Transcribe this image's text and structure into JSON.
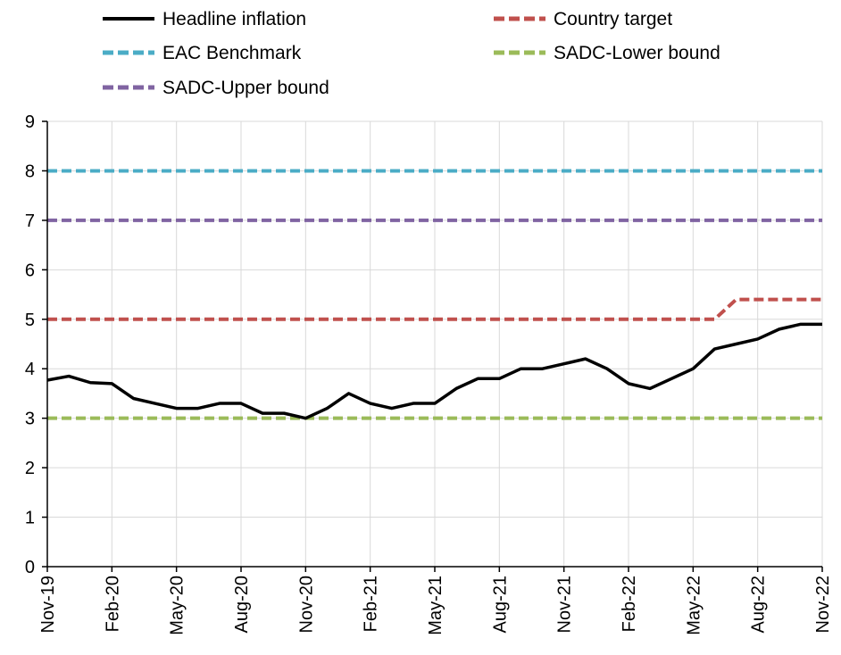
{
  "chart_data": {
    "type": "line",
    "ylim": [
      0,
      9
    ],
    "yticks": [
      0,
      1,
      2,
      3,
      4,
      5,
      6,
      7,
      8,
      9
    ],
    "xticks": [
      "Nov-19",
      "Feb-20",
      "May-20",
      "Aug-20",
      "Nov-20",
      "Feb-21",
      "May-21",
      "Aug-21",
      "Nov-21",
      "Feb-22",
      "May-22",
      "Aug-22",
      "Nov-22"
    ],
    "x": [
      "Nov-19",
      "Dec-19",
      "Jan-20",
      "Feb-20",
      "Mar-20",
      "Apr-20",
      "May-20",
      "Jun-20",
      "Jul-20",
      "Aug-20",
      "Sep-20",
      "Oct-20",
      "Nov-20",
      "Dec-20",
      "Jan-21",
      "Feb-21",
      "Mar-21",
      "Apr-21",
      "May-21",
      "Jun-21",
      "Jul-21",
      "Aug-21",
      "Sep-21",
      "Oct-21",
      "Nov-21",
      "Dec-21",
      "Jan-22",
      "Feb-22",
      "Mar-22",
      "Apr-22",
      "May-22",
      "Jun-22",
      "Jul-22",
      "Aug-22",
      "Sep-22",
      "Oct-22",
      "Nov-22"
    ],
    "grid": true,
    "legend_position": "top",
    "series": [
      {
        "name": "Headline inflation",
        "color": "#000000",
        "style": "solid",
        "values": [
          3.77,
          3.85,
          3.72,
          3.7,
          3.4,
          3.3,
          3.2,
          3.2,
          3.3,
          3.3,
          3.1,
          3.1,
          3.0,
          3.2,
          3.5,
          3.3,
          3.2,
          3.3,
          3.3,
          3.6,
          3.8,
          3.8,
          4.0,
          4.0,
          4.1,
          4.2,
          4.0,
          3.7,
          3.6,
          3.8,
          4.0,
          4.4,
          4.5,
          4.6,
          4.8,
          4.9,
          4.9
        ]
      },
      {
        "name": "Country target",
        "color": "#c0504d",
        "style": "dashed",
        "values": [
          5,
          5,
          5,
          5,
          5,
          5,
          5,
          5,
          5,
          5,
          5,
          5,
          5,
          5,
          5,
          5,
          5,
          5,
          5,
          5,
          5,
          5,
          5,
          5,
          5,
          5,
          5,
          5,
          5,
          5,
          5,
          5,
          5.4,
          5.4,
          5.4,
          5.4,
          5.4
        ]
      },
      {
        "name": "EAC Benchmark",
        "color": "#4bacc6",
        "style": "dashed",
        "values": [
          8,
          8,
          8,
          8,
          8,
          8,
          8,
          8,
          8,
          8,
          8,
          8,
          8,
          8,
          8,
          8,
          8,
          8,
          8,
          8,
          8,
          8,
          8,
          8,
          8,
          8,
          8,
          8,
          8,
          8,
          8,
          8,
          8,
          8,
          8,
          8,
          8
        ]
      },
      {
        "name": "SADC-Lower bound",
        "color": "#9bbb59",
        "style": "dashed",
        "values": [
          3,
          3,
          3,
          3,
          3,
          3,
          3,
          3,
          3,
          3,
          3,
          3,
          3,
          3,
          3,
          3,
          3,
          3,
          3,
          3,
          3,
          3,
          3,
          3,
          3,
          3,
          3,
          3,
          3,
          3,
          3,
          3,
          3,
          3,
          3,
          3,
          3
        ]
      },
      {
        "name": "SADC-Upper bound",
        "color": "#8064a2",
        "style": "dashed",
        "values": [
          7,
          7,
          7,
          7,
          7,
          7,
          7,
          7,
          7,
          7,
          7,
          7,
          7,
          7,
          7,
          7,
          7,
          7,
          7,
          7,
          7,
          7,
          7,
          7,
          7,
          7,
          7,
          7,
          7,
          7,
          7,
          7,
          7,
          7,
          7,
          7,
          7
        ]
      }
    ]
  }
}
